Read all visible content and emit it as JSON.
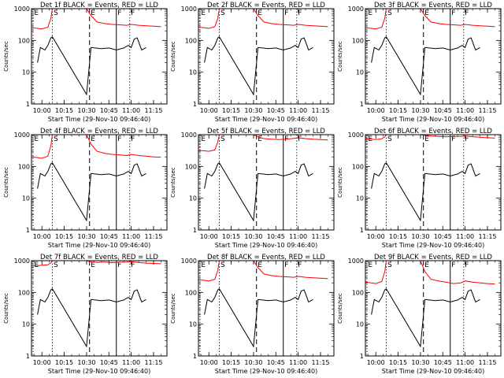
{
  "figure": {
    "x_ticks": [
      "10:00",
      "10:15",
      "10:30",
      "10:45",
      "11:00",
      "11:15"
    ],
    "y_ticks": [
      "1",
      "10",
      "100",
      "1000"
    ],
    "ylabel": "Counts/sec",
    "xlabel": "Start Time (29-Nov-10 09:46:40)",
    "colors": {
      "events": "#000000",
      "lld": "#ff0000",
      "axes": "#000000",
      "background": "#ffffff"
    },
    "markers": [
      {
        "label": "E",
        "time": "09:54",
        "style": "dotted"
      },
      {
        "label": "S",
        "time": "10:07",
        "style": "dotted"
      },
      {
        "label": "E",
        "time": "10:32",
        "style": "dashed"
      },
      {
        "label": "F",
        "time": "10:50",
        "style": "solid"
      },
      {
        "label": "F",
        "time": "10:59",
        "style": "dotted"
      }
    ]
  },
  "chart_data": [
    {
      "type": "line",
      "title": "Det 1f BLACK = Events, RED = LLD",
      "xlabel": "Start Time (29-Nov-10 09:46:40)",
      "ylabel": "Counts/sec",
      "y_scale": "log",
      "ylim": [
        1,
        1000
      ],
      "xlim": [
        "09:53",
        "11:24"
      ],
      "series": [
        {
          "name": "Events",
          "color": "#000000",
          "x": [
            "09:57",
            "09:59",
            "10:02",
            "10:04",
            "10:06",
            "10:07",
            "10:30",
            "10:33",
            "10:40",
            "10:45",
            "10:50",
            "10:55",
            "10:58",
            "11:00",
            "11:02",
            "11:04",
            "11:07",
            "11:10"
          ],
          "y": [
            20,
            60,
            50,
            70,
            120,
            130,
            2,
            60,
            55,
            58,
            50,
            58,
            70,
            60,
            110,
            120,
            50,
            60
          ]
        },
        {
          "name": "LLD",
          "color": "#ff0000",
          "x": [
            "09:53",
            "09:57",
            "10:00",
            "10:04",
            "10:06",
            "10:07",
            "10:30",
            "10:33",
            "10:37",
            "10:42",
            "10:47",
            "10:52",
            "10:57",
            "11:00",
            "11:05",
            "11:10",
            "11:15",
            "11:20"
          ],
          "y": [
            250,
            240,
            230,
            260,
            500,
            1000,
            1000,
            600,
            380,
            340,
            320,
            310,
            300,
            320,
            300,
            290,
            280,
            270
          ]
        }
      ]
    },
    {
      "type": "line",
      "title": "Det 2f BLACK = Events, RED = LLD",
      "xlabel": "Start Time (29-Nov-10 09:46:40)",
      "ylabel": "Counts/sec",
      "y_scale": "log",
      "ylim": [
        1,
        1000
      ],
      "xlim": [
        "09:53",
        "11:24"
      ],
      "series": [
        {
          "name": "Events",
          "color": "#000000",
          "x": [
            "09:57",
            "09:59",
            "10:02",
            "10:04",
            "10:06",
            "10:07",
            "10:30",
            "10:33",
            "10:40",
            "10:45",
            "10:50",
            "10:55",
            "10:58",
            "11:00",
            "11:02",
            "11:04",
            "11:07",
            "11:10"
          ],
          "y": [
            20,
            60,
            50,
            70,
            120,
            130,
            2,
            60,
            55,
            58,
            50,
            58,
            70,
            60,
            110,
            120,
            50,
            60
          ]
        },
        {
          "name": "LLD",
          "color": "#ff0000",
          "x": [
            "09:53",
            "09:57",
            "10:00",
            "10:04",
            "10:06",
            "10:07",
            "10:30",
            "10:33",
            "10:37",
            "10:42",
            "10:47",
            "10:52",
            "10:57",
            "11:00",
            "11:05",
            "11:10",
            "11:15",
            "11:20"
          ],
          "y": [
            260,
            250,
            240,
            270,
            500,
            1000,
            1000,
            600,
            380,
            340,
            320,
            310,
            300,
            320,
            300,
            290,
            280,
            270
          ]
        }
      ]
    },
    {
      "type": "line",
      "title": "Det 3f BLACK = Events, RED = LLD",
      "xlabel": "Start Time (29-Nov-10 09:46:40)",
      "ylabel": "Counts/sec",
      "y_scale": "log",
      "ylim": [
        1,
        1000
      ],
      "xlim": [
        "09:53",
        "11:24"
      ],
      "series": [
        {
          "name": "Events",
          "color": "#000000",
          "x": [
            "09:57",
            "09:59",
            "10:02",
            "10:04",
            "10:06",
            "10:07",
            "10:30",
            "10:33",
            "10:40",
            "10:45",
            "10:50",
            "10:55",
            "10:58",
            "11:00",
            "11:02",
            "11:04",
            "11:07",
            "11:10"
          ],
          "y": [
            20,
            60,
            50,
            70,
            120,
            130,
            2,
            60,
            55,
            58,
            50,
            58,
            70,
            60,
            110,
            120,
            50,
            60
          ]
        },
        {
          "name": "LLD",
          "color": "#ff0000",
          "x": [
            "09:53",
            "09:57",
            "10:00",
            "10:04",
            "10:06",
            "10:07",
            "10:30",
            "10:33",
            "10:37",
            "10:42",
            "10:47",
            "10:52",
            "10:57",
            "11:00",
            "11:05",
            "11:10",
            "11:15",
            "11:20"
          ],
          "y": [
            250,
            240,
            230,
            260,
            500,
            1000,
            1000,
            600,
            380,
            340,
            320,
            310,
            300,
            320,
            300,
            290,
            280,
            270
          ]
        }
      ]
    },
    {
      "type": "line",
      "title": "Det 4f BLACK = Events, RED = LLD",
      "xlabel": "Start Time (29-Nov-10 09:46:40)",
      "ylabel": "Counts/sec",
      "y_scale": "log",
      "ylim": [
        1,
        1000
      ],
      "xlim": [
        "09:53",
        "11:24"
      ],
      "series": [
        {
          "name": "Events",
          "color": "#000000",
          "x": [
            "09:57",
            "09:59",
            "10:02",
            "10:04",
            "10:06",
            "10:07",
            "10:30",
            "10:33",
            "10:40",
            "10:45",
            "10:50",
            "10:55",
            "10:58",
            "11:00",
            "11:02",
            "11:04",
            "11:07",
            "11:10"
          ],
          "y": [
            20,
            60,
            50,
            70,
            120,
            130,
            2,
            60,
            55,
            58,
            50,
            58,
            70,
            60,
            110,
            120,
            50,
            60
          ]
        },
        {
          "name": "LLD",
          "color": "#ff0000",
          "x": [
            "09:53",
            "09:57",
            "10:00",
            "10:04",
            "10:06",
            "10:07",
            "10:30",
            "10:33",
            "10:37",
            "10:42",
            "10:47",
            "10:52",
            "10:57",
            "11:00",
            "11:05",
            "11:10",
            "11:15",
            "11:20"
          ],
          "y": [
            200,
            190,
            180,
            210,
            450,
            1000,
            1000,
            500,
            300,
            260,
            240,
            230,
            220,
            240,
            220,
            210,
            200,
            195
          ]
        }
      ]
    },
    {
      "type": "line",
      "title": "Det 5f BLACK = Events, RED = LLD",
      "xlabel": "Start Time (29-Nov-10 09:46:40)",
      "ylabel": "Counts/sec",
      "y_scale": "log",
      "ylim": [
        1,
        1000
      ],
      "xlim": [
        "09:53",
        "11:24"
      ],
      "series": [
        {
          "name": "Events",
          "color": "#000000",
          "x": [
            "09:57",
            "09:59",
            "10:02",
            "10:04",
            "10:06",
            "10:07",
            "10:30",
            "10:33",
            "10:40",
            "10:45",
            "10:50",
            "10:55",
            "10:58",
            "11:00",
            "11:02",
            "11:04",
            "11:07",
            "11:10"
          ],
          "y": [
            20,
            60,
            50,
            70,
            120,
            130,
            2,
            60,
            55,
            58,
            50,
            58,
            70,
            60,
            110,
            120,
            50,
            60
          ]
        },
        {
          "name": "LLD",
          "color": "#ff0000",
          "x": [
            "09:53",
            "09:57",
            "10:00",
            "10:04",
            "10:06",
            "10:07",
            "10:30",
            "10:33",
            "10:37",
            "10:42",
            "10:47",
            "10:52",
            "10:57",
            "11:00",
            "11:05",
            "11:10",
            "11:15",
            "11:20"
          ],
          "y": [
            320,
            310,
            300,
            330,
            600,
            1000,
            1000,
            850,
            750,
            720,
            700,
            720,
            760,
            800,
            750,
            720,
            700,
            680
          ]
        }
      ]
    },
    {
      "type": "line",
      "title": "Det 6f BLACK = Events, RED = LLD",
      "xlabel": "Start Time (29-Nov-10 09:46:40)",
      "ylabel": "Counts/sec",
      "y_scale": "log",
      "ylim": [
        1,
        1000
      ],
      "xlim": [
        "09:53",
        "11:24"
      ],
      "series": [
        {
          "name": "Events",
          "color": "#000000",
          "x": [
            "09:57",
            "09:59",
            "10:02",
            "10:04",
            "10:06",
            "10:07",
            "10:30",
            "10:33",
            "10:40",
            "10:45",
            "10:50",
            "10:55",
            "10:58",
            "11:00",
            "11:02",
            "11:04",
            "11:07",
            "11:10"
          ],
          "y": [
            20,
            60,
            50,
            70,
            120,
            130,
            2,
            60,
            55,
            58,
            50,
            58,
            70,
            60,
            110,
            120,
            50,
            60
          ]
        },
        {
          "name": "LLD",
          "color": "#ff0000",
          "x": [
            "09:53",
            "09:57",
            "10:00",
            "10:04",
            "10:06",
            "10:07",
            "10:30",
            "10:33",
            "10:37",
            "10:42",
            "10:47",
            "10:52",
            "10:57",
            "11:00",
            "11:05",
            "11:10",
            "11:15",
            "11:20"
          ],
          "y": [
            750,
            720,
            700,
            740,
            850,
            1000,
            1000,
            950,
            900,
            880,
            860,
            870,
            880,
            900,
            860,
            830,
            800,
            780
          ]
        }
      ]
    },
    {
      "type": "line",
      "title": "Det 7f BLACK = Events, RED = LLD",
      "xlabel": "Start Time (29-Nov-10 09:46:40)",
      "ylabel": "Counts/sec",
      "y_scale": "log",
      "ylim": [
        1,
        1000
      ],
      "xlim": [
        "09:53",
        "11:24"
      ],
      "series": [
        {
          "name": "Events",
          "color": "#000000",
          "x": [
            "09:57",
            "09:59",
            "10:02",
            "10:04",
            "10:06",
            "10:07",
            "10:30",
            "10:33",
            "10:40",
            "10:45",
            "10:50",
            "10:55",
            "10:58",
            "11:00",
            "11:02",
            "11:04",
            "11:07",
            "11:10"
          ],
          "y": [
            20,
            60,
            50,
            70,
            120,
            130,
            2,
            60,
            55,
            58,
            50,
            58,
            70,
            60,
            110,
            120,
            50,
            60
          ]
        },
        {
          "name": "LLD",
          "color": "#ff0000",
          "x": [
            "09:53",
            "09:57",
            "10:00",
            "10:04",
            "10:06",
            "10:07",
            "10:30",
            "10:33",
            "10:37",
            "10:42",
            "10:47",
            "10:52",
            "10:57",
            "11:00",
            "11:05",
            "11:10",
            "11:15",
            "11:20"
          ],
          "y": [
            700,
            690,
            720,
            740,
            850,
            1000,
            1000,
            920,
            880,
            900,
            860,
            890,
            910,
            930,
            870,
            840,
            820,
            800
          ]
        }
      ]
    },
    {
      "type": "line",
      "title": "Det 8f BLACK = Events, RED = LLD",
      "xlabel": "Start Time (29-Nov-10 09:46:40)",
      "ylabel": "Counts/sec",
      "y_scale": "log",
      "ylim": [
        1,
        1000
      ],
      "xlim": [
        "09:53",
        "11:24"
      ],
      "series": [
        {
          "name": "Events",
          "color": "#000000",
          "x": [
            "09:57",
            "09:59",
            "10:02",
            "10:04",
            "10:06",
            "10:07",
            "10:30",
            "10:33",
            "10:40",
            "10:45",
            "10:50",
            "10:55",
            "10:58",
            "11:00",
            "11:02",
            "11:04",
            "11:07",
            "11:10"
          ],
          "y": [
            20,
            60,
            50,
            70,
            120,
            130,
            2,
            60,
            55,
            58,
            50,
            58,
            70,
            60,
            110,
            120,
            50,
            60
          ]
        },
        {
          "name": "LLD",
          "color": "#ff0000",
          "x": [
            "09:53",
            "09:57",
            "10:00",
            "10:04",
            "10:06",
            "10:07",
            "10:30",
            "10:33",
            "10:37",
            "10:42",
            "10:47",
            "10:52",
            "10:57",
            "11:00",
            "11:05",
            "11:10",
            "11:15",
            "11:20"
          ],
          "y": [
            250,
            240,
            230,
            260,
            500,
            1000,
            1000,
            600,
            380,
            340,
            320,
            310,
            300,
            320,
            300,
            290,
            280,
            270
          ]
        }
      ]
    },
    {
      "type": "line",
      "title": "Det 9f BLACK = Events, RED = LLD",
      "xlabel": "Start Time (29-Nov-10 09:46:40)",
      "ylabel": "Counts/sec",
      "y_scale": "log",
      "ylim": [
        1,
        1000
      ],
      "xlim": [
        "09:53",
        "11:24"
      ],
      "series": [
        {
          "name": "Events",
          "color": "#000000",
          "x": [
            "09:57",
            "09:59",
            "10:02",
            "10:04",
            "10:06",
            "10:07",
            "10:30",
            "10:33",
            "10:40",
            "10:45",
            "10:50",
            "10:55",
            "10:58",
            "11:00",
            "11:02",
            "11:04",
            "11:07",
            "11:10"
          ],
          "y": [
            20,
            60,
            50,
            70,
            120,
            130,
            2,
            60,
            55,
            58,
            50,
            58,
            70,
            60,
            110,
            120,
            50,
            60
          ]
        },
        {
          "name": "LLD",
          "color": "#ff0000",
          "x": [
            "09:53",
            "09:57",
            "10:00",
            "10:04",
            "10:06",
            "10:07",
            "10:30",
            "10:33",
            "10:37",
            "10:42",
            "10:47",
            "10:52",
            "10:57",
            "11:00",
            "11:05",
            "11:10",
            "11:15",
            "11:20"
          ],
          "y": [
            210,
            200,
            190,
            220,
            450,
            1000,
            1000,
            450,
            260,
            230,
            210,
            190,
            200,
            230,
            210,
            200,
            190,
            185
          ]
        }
      ]
    }
  ]
}
